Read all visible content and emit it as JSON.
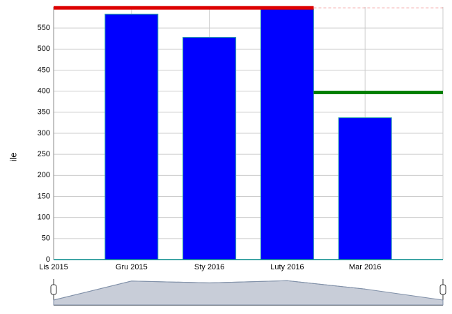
{
  "chart_data": {
    "type": "bar",
    "y_label": "ile",
    "categories": [
      "Lis 2015",
      "Gru 2015",
      "Sty 2016",
      "Luty 2016",
      "Mar 2016"
    ],
    "values": [
      0,
      583,
      528,
      595,
      337
    ],
    "color": "#0000ff",
    "ylim": [
      0,
      600
    ],
    "yticks": [
      0,
      50,
      100,
      150,
      200,
      250,
      300,
      350,
      400,
      450,
      500,
      550
    ],
    "grid": true,
    "guides": [
      {
        "value": 598,
        "color": "#dd0000"
      },
      {
        "value": 397,
        "color": "#008000"
      }
    ]
  }
}
